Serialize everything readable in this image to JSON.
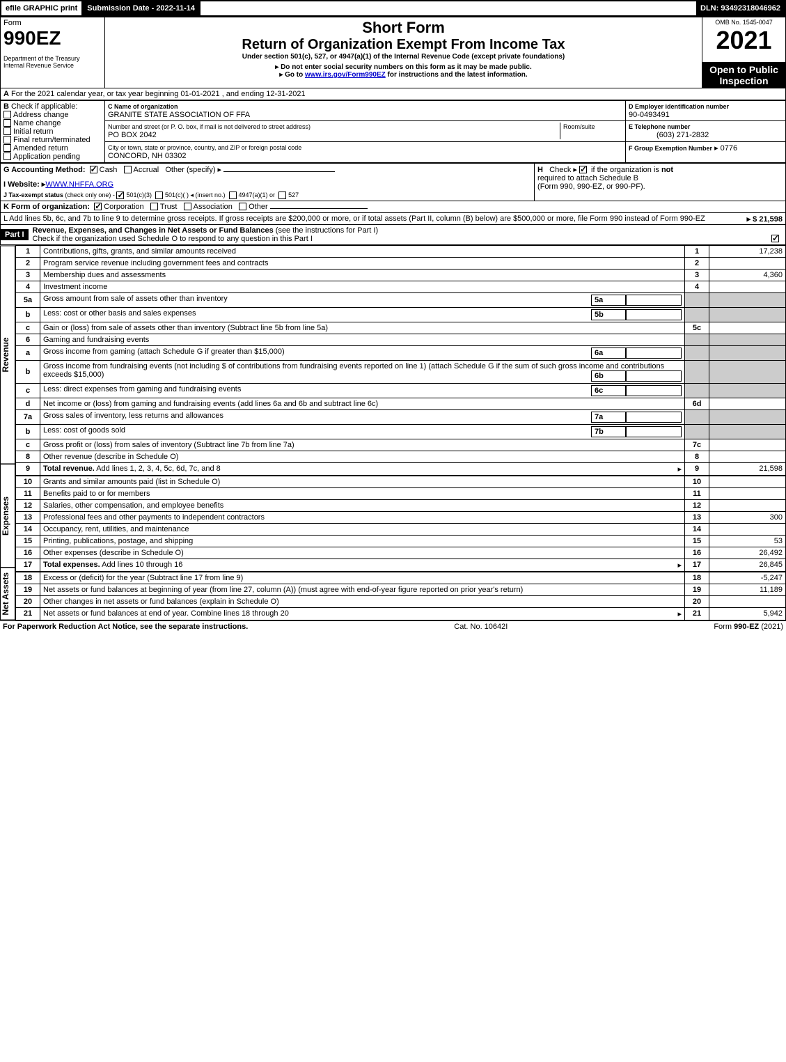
{
  "topbar": {
    "efile": "efile GRAPHIC print",
    "submission": "Submission Date - 2022-11-14",
    "dln": "DLN: 93492318046962"
  },
  "header": {
    "form_word": "Form",
    "form_number": "990EZ",
    "dept1": "Department of the Treasury",
    "dept2": "Internal Revenue Service",
    "short_form": "Short Form",
    "title": "Return of Organization Exempt From Income Tax",
    "subtitle": "Under section 501(c), 527, or 4947(a)(1) of the Internal Revenue Code (except private foundations)",
    "warn": "▸ Do not enter social security numbers on this form as it may be made public.",
    "goto_pre": "▸ Go to ",
    "goto_link": "www.irs.gov/Form990EZ",
    "goto_post": " for instructions and the latest information.",
    "omb": "OMB No. 1545-0047",
    "year": "2021",
    "open": "Open to Public Inspection"
  },
  "A": "For the 2021 calendar year, or tax year beginning 01-01-2021 , and ending 12-31-2021",
  "B": {
    "label": "Check if applicable:",
    "opts": [
      "Address change",
      "Name change",
      "Initial return",
      "Final return/terminated",
      "Amended return",
      "Application pending"
    ]
  },
  "C": {
    "label": "C Name of organization",
    "name": "GRANITE STATE ASSOCIATION OF FFA",
    "street_label": "Number and street (or P. O. box, if mail is not delivered to street address)",
    "room_label": "Room/suite",
    "street": "PO BOX 2042",
    "city_label": "City or town, state or province, country, and ZIP or foreign postal code",
    "city": "CONCORD, NH  03302"
  },
  "D": {
    "label": "D Employer identification number",
    "val": "90-0493491"
  },
  "E": {
    "label": "E Telephone number",
    "val": "(603) 271-2832"
  },
  "F": {
    "label": "F Group Exemption Number",
    "val": "▸ 0776"
  },
  "G": {
    "label": "G Accounting Method:",
    "cash": "Cash",
    "accrual": "Accrual",
    "other": "Other (specify) ▸"
  },
  "H": {
    "label": "H",
    "text1": "Check ▸",
    "text2": "if the organization is ",
    "not": "not",
    "text3": "required to attach Schedule B",
    "text4": "(Form 990, 990-EZ, or 990-PF)."
  },
  "I": {
    "label": "I Website: ▸",
    "val": "WWW.NHFFA.ORG"
  },
  "J": {
    "label": "J Tax-exempt status",
    "sub": "(check only one) -",
    "o1": "501(c)(3)",
    "o2": "501(c)(  ) ◂ (insert no.)",
    "o3": "4947(a)(1) or",
    "o4": "527"
  },
  "K": {
    "label": "K Form of organization:",
    "opts": [
      "Corporation",
      "Trust",
      "Association",
      "Other"
    ]
  },
  "L": {
    "text": "L Add lines 5b, 6c, and 7b to line 9 to determine gross receipts. If gross receipts are $200,000 or more, or if total assets (Part II, column (B) below) are $500,000 or more, file Form 990 instead of Form 990-EZ",
    "amt": "▸ $ 21,598"
  },
  "part1": {
    "label": "Part I",
    "title": "Revenue, Expenses, and Changes in Net Assets or Fund Balances",
    "sub": "(see the instructions for Part I)",
    "check": "Check if the organization used Schedule O to respond to any question in this Part I"
  },
  "sections": {
    "revenue": "Revenue",
    "expenses": "Expenses",
    "netassets": "Net Assets"
  },
  "lines": [
    {
      "n": "1",
      "t": "Contributions, gifts, grants, and similar amounts received",
      "r": "1",
      "a": "17,238"
    },
    {
      "n": "2",
      "t": "Program service revenue including government fees and contracts",
      "r": "2",
      "a": ""
    },
    {
      "n": "3",
      "t": "Membership dues and assessments",
      "r": "3",
      "a": "4,360"
    },
    {
      "n": "4",
      "t": "Investment income",
      "r": "4",
      "a": ""
    },
    {
      "n": "5a",
      "t": "Gross amount from sale of assets other than inventory",
      "box": "5a",
      "r": "",
      "a": "",
      "shade": true
    },
    {
      "n": "b",
      "t": "Less: cost or other basis and sales expenses",
      "box": "5b",
      "r": "",
      "a": "",
      "shade": true
    },
    {
      "n": "c",
      "t": "Gain or (loss) from sale of assets other than inventory (Subtract line 5b from line 5a)",
      "r": "5c",
      "a": ""
    },
    {
      "n": "6",
      "t": "Gaming and fundraising events",
      "r": "",
      "a": "",
      "shade": true
    },
    {
      "n": "a",
      "t": "Gross income from gaming (attach Schedule G if greater than $15,000)",
      "box": "6a",
      "r": "",
      "a": "",
      "shade": true
    },
    {
      "n": "b",
      "t": "Gross income from fundraising events (not including $                 of contributions from fundraising events reported on line 1) (attach Schedule G if the sum of such gross income and contributions exceeds $15,000)",
      "box": "6b",
      "r": "",
      "a": "",
      "shade": true
    },
    {
      "n": "c",
      "t": "Less: direct expenses from gaming and fundraising events",
      "box": "6c",
      "r": "",
      "a": "",
      "shade": true
    },
    {
      "n": "d",
      "t": "Net income or (loss) from gaming and fundraising events (add lines 6a and 6b and subtract line 6c)",
      "r": "6d",
      "a": ""
    },
    {
      "n": "7a",
      "t": "Gross sales of inventory, less returns and allowances",
      "box": "7a",
      "r": "",
      "a": "",
      "shade": true
    },
    {
      "n": "b",
      "t": "Less: cost of goods sold",
      "box": "7b",
      "r": "",
      "a": "",
      "shade": true
    },
    {
      "n": "c",
      "t": "Gross profit or (loss) from sales of inventory (Subtract line 7b from line 7a)",
      "r": "7c",
      "a": ""
    },
    {
      "n": "8",
      "t": "Other revenue (describe in Schedule O)",
      "r": "8",
      "a": ""
    },
    {
      "n": "9",
      "t": "Total revenue. Add lines 1, 2, 3, 4, 5c, 6d, 7c, and 8",
      "r": "9",
      "a": "21,598",
      "arrow": true,
      "bold": true
    }
  ],
  "exp_lines": [
    {
      "n": "10",
      "t": "Grants and similar amounts paid (list in Schedule O)",
      "r": "10",
      "a": ""
    },
    {
      "n": "11",
      "t": "Benefits paid to or for members",
      "r": "11",
      "a": ""
    },
    {
      "n": "12",
      "t": "Salaries, other compensation, and employee benefits",
      "r": "12",
      "a": ""
    },
    {
      "n": "13",
      "t": "Professional fees and other payments to independent contractors",
      "r": "13",
      "a": "300"
    },
    {
      "n": "14",
      "t": "Occupancy, rent, utilities, and maintenance",
      "r": "14",
      "a": ""
    },
    {
      "n": "15",
      "t": "Printing, publications, postage, and shipping",
      "r": "15",
      "a": "53"
    },
    {
      "n": "16",
      "t": "Other expenses (describe in Schedule O)",
      "r": "16",
      "a": "26,492"
    },
    {
      "n": "17",
      "t": "Total expenses. Add lines 10 through 16",
      "r": "17",
      "a": "26,845",
      "arrow": true,
      "bold": true
    }
  ],
  "na_lines": [
    {
      "n": "18",
      "t": "Excess or (deficit) for the year (Subtract line 17 from line 9)",
      "r": "18",
      "a": "-5,247"
    },
    {
      "n": "19",
      "t": "Net assets or fund balances at beginning of year (from line 27, column (A)) (must agree with end-of-year figure reported on prior year's return)",
      "r": "19",
      "a": "11,189"
    },
    {
      "n": "20",
      "t": "Other changes in net assets or fund balances (explain in Schedule O)",
      "r": "20",
      "a": ""
    },
    {
      "n": "21",
      "t": "Net assets or fund balances at end of year. Combine lines 18 through 20",
      "r": "21",
      "a": "5,942",
      "arrow": true
    }
  ],
  "footer": {
    "left": "For Paperwork Reduction Act Notice, see the separate instructions.",
    "mid": "Cat. No. 10642I",
    "right": "Form 990-EZ (2021)"
  }
}
